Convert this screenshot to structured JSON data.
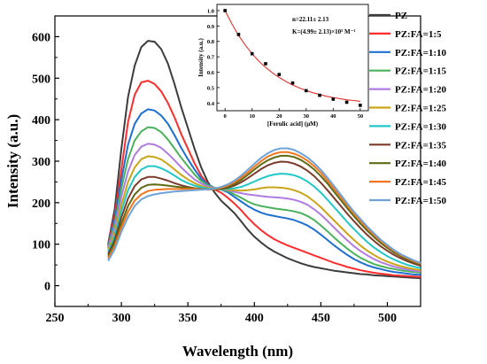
{
  "chart_data": [
    {
      "type": "line",
      "title": "",
      "xlabel": "Wavelength (nm)",
      "ylabel": "Intensity (a.u.)",
      "xlim": [
        250,
        525
      ],
      "ylim": [
        -50,
        650
      ],
      "xticks": [
        250,
        300,
        350,
        400,
        450,
        500
      ],
      "yticks": [
        0,
        100,
        200,
        300,
        400,
        500,
        600
      ],
      "grid": false,
      "legend": "right",
      "x": [
        290,
        295,
        300,
        305,
        310,
        315,
        320,
        325,
        330,
        335,
        340,
        345,
        350,
        355,
        360,
        365,
        370,
        375,
        380,
        385,
        390,
        395,
        400,
        405,
        410,
        415,
        420,
        425,
        430,
        435,
        440,
        445,
        450,
        455,
        460,
        465,
        470,
        475,
        480,
        485,
        490,
        495,
        500,
        505,
        510,
        515,
        520,
        525
      ],
      "series": [
        {
          "name": "PZ",
          "color": "#3c3c3c",
          "values": [
            100,
            185,
            330,
            455,
            530,
            575,
            590,
            588,
            570,
            535,
            485,
            430,
            380,
            330,
            285,
            250,
            225,
            205,
            190,
            175,
            155,
            135,
            118,
            104,
            92,
            82,
            74,
            66,
            60,
            54,
            49,
            45,
            42,
            39,
            36,
            34,
            32,
            30,
            28,
            27,
            25,
            24,
            23,
            22,
            21,
            20,
            19,
            18
          ]
        },
        {
          "name": "PZ:FA=1:5",
          "color": "#ff2e2e",
          "values": [
            98,
            170,
            280,
            395,
            460,
            490,
            494,
            486,
            468,
            440,
            405,
            365,
            330,
            295,
            265,
            245,
            232,
            224,
            212,
            198,
            182,
            164,
            148,
            134,
            122,
            112,
            104,
            97,
            91,
            85,
            79,
            73,
            67,
            61,
            55,
            50,
            45,
            41,
            37,
            34,
            31,
            29,
            27,
            25,
            24,
            23,
            22,
            21
          ]
        },
        {
          "name": "PZ:FA=1:10",
          "color": "#1f6fd1",
          "values": [
            95,
            160,
            255,
            340,
            390,
            415,
            425,
            422,
            410,
            390,
            362,
            332,
            305,
            280,
            258,
            244,
            236,
            232,
            225,
            214,
            203,
            192,
            183,
            176,
            171,
            168,
            165,
            162,
            158,
            152,
            145,
            135,
            123,
            110,
            97,
            85,
            74,
            64,
            56,
            49,
            44,
            40,
            36,
            33,
            31,
            29,
            27,
            26
          ]
        },
        {
          "name": "PZ:FA=1:15",
          "color": "#4cb15c",
          "values": [
            92,
            150,
            235,
            305,
            350,
            372,
            382,
            380,
            370,
            352,
            330,
            308,
            288,
            268,
            252,
            242,
            236,
            232,
            228,
            220,
            212,
            203,
            196,
            192,
            189,
            186,
            184,
            182,
            179,
            175,
            168,
            158,
            145,
            131,
            116,
            102,
            89,
            77,
            67,
            59,
            52,
            47,
            43,
            40,
            37,
            35,
            33,
            31
          ]
        },
        {
          "name": "PZ:FA=1:20",
          "color": "#b07ce0",
          "values": [
            90,
            140,
            215,
            275,
            315,
            335,
            342,
            340,
            332,
            318,
            302,
            285,
            270,
            256,
            246,
            239,
            235,
            232,
            230,
            226,
            223,
            220,
            218,
            216,
            214,
            213,
            212,
            210,
            207,
            202,
            195,
            184,
            171,
            156,
            140,
            124,
            109,
            95,
            83,
            73,
            64,
            57,
            51,
            46,
            42,
            39,
            36,
            34
          ]
        },
        {
          "name": "PZ:FA=1:25",
          "color": "#c9a518",
          "values": [
            85,
            130,
            195,
            250,
            285,
            305,
            312,
            310,
            304,
            293,
            280,
            267,
            256,
            247,
            240,
            236,
            234,
            232,
            231,
            230,
            229,
            230,
            232,
            235,
            237,
            237,
            236,
            234,
            230,
            224,
            215,
            203,
            189,
            173,
            157,
            141,
            125,
            110,
            96,
            84,
            74,
            65,
            58,
            52,
            47,
            43,
            40,
            37
          ]
        },
        {
          "name": "PZ:FA=1:30",
          "color": "#22c7c7",
          "values": [
            80,
            120,
            180,
            230,
            262,
            280,
            288,
            288,
            283,
            275,
            265,
            255,
            247,
            241,
            237,
            234,
            233,
            232,
            233,
            235,
            238,
            244,
            251,
            258,
            264,
            268,
            270,
            269,
            266,
            260,
            251,
            239,
            224,
            207,
            189,
            171,
            153,
            136,
            120,
            105,
            92,
            81,
            71,
            63,
            56,
            50,
            46,
            42
          ]
        },
        {
          "name": "PZ:FA=1:35",
          "color": "#7b3b2a",
          "values": [
            75,
            110,
            165,
            210,
            240,
            256,
            262,
            262,
            258,
            253,
            247,
            242,
            238,
            235,
            233,
            232,
            232,
            233,
            236,
            241,
            249,
            259,
            270,
            281,
            290,
            296,
            299,
            298,
            294,
            287,
            277,
            264,
            248,
            230,
            211,
            192,
            173,
            155,
            138,
            122,
            108,
            95,
            84,
            74,
            66,
            59,
            53,
            48
          ]
        },
        {
          "name": "PZ:FA=1:40",
          "color": "#5f6a12",
          "values": [
            70,
            102,
            150,
            192,
            220,
            236,
            243,
            244,
            243,
            241,
            239,
            237,
            236,
            234,
            233,
            232,
            232,
            234,
            238,
            245,
            255,
            267,
            280,
            292,
            302,
            309,
            313,
            313,
            310,
            303,
            293,
            280,
            264,
            246,
            226,
            206,
            186,
            167,
            149,
            132,
            117,
            103,
            91,
            80,
            71,
            63,
            57,
            51
          ]
        },
        {
          "name": "PZ:FA=1:45",
          "color": "#f2761f",
          "values": [
            65,
            95,
            140,
            178,
            205,
            220,
            228,
            231,
            232,
            233,
            233,
            233,
            233,
            233,
            232,
            232,
            233,
            236,
            241,
            249,
            260,
            273,
            287,
            300,
            311,
            318,
            322,
            322,
            318,
            311,
            301,
            288,
            272,
            253,
            233,
            213,
            193,
            173,
            155,
            138,
            122,
            108,
            95,
            84,
            74,
            66,
            59,
            53
          ]
        },
        {
          "name": "PZ:FA=1:50",
          "color": "#6fa3d8",
          "values": [
            60,
            88,
            130,
            165,
            192,
            208,
            216,
            220,
            223,
            225,
            227,
            228,
            229,
            230,
            231,
            232,
            234,
            238,
            244,
            253,
            265,
            279,
            294,
            308,
            319,
            327,
            331,
            331,
            327,
            319,
            309,
            295,
            279,
            260,
            240,
            219,
            198,
            178,
            160,
            142,
            126,
            111,
            98,
            86,
            76,
            68,
            61,
            55
          ]
        }
      ]
    },
    {
      "type": "scatter",
      "title": "",
      "xlabel": "[Ferulic acid] (μM)",
      "ylabel": "Intensity (a.u.)",
      "xlim": [
        -3,
        53
      ],
      "ylim": [
        0.35,
        1.04
      ],
      "xticks": [
        0,
        10,
        20,
        30,
        40,
        50
      ],
      "yticks": [
        0.4,
        0.5,
        0.6,
        0.7,
        0.8,
        0.9,
        1.0
      ],
      "ytick_labels": [
        "0.4",
        "0.5",
        "0.6",
        "0.7",
        "0.8",
        "0.9",
        "1.0"
      ],
      "annotations": [
        "n=22.11± 2.13",
        "K=(4.99± 2.13)×10⁵ M⁻¹"
      ],
      "points": {
        "x": [
          0,
          5,
          10,
          15,
          20,
          25,
          30,
          35,
          40,
          45,
          50
        ],
        "y": [
          1.0,
          0.845,
          0.72,
          0.655,
          0.585,
          0.53,
          0.48,
          0.45,
          0.425,
          0.405,
          0.385
        ],
        "color": "#000000"
      },
      "fit": {
        "x": [
          0,
          2.5,
          5,
          7.5,
          10,
          12.5,
          15,
          17.5,
          20,
          22.5,
          25,
          27.5,
          30,
          32.5,
          35,
          37.5,
          40,
          42.5,
          45,
          47.5,
          50
        ],
        "y": [
          1.0,
          0.914,
          0.839,
          0.775,
          0.72,
          0.672,
          0.631,
          0.596,
          0.566,
          0.54,
          0.517,
          0.498,
          0.481,
          0.467,
          0.455,
          0.444,
          0.435,
          0.428,
          0.421,
          0.416,
          0.411
        ],
        "color": "#e0322d"
      }
    }
  ]
}
